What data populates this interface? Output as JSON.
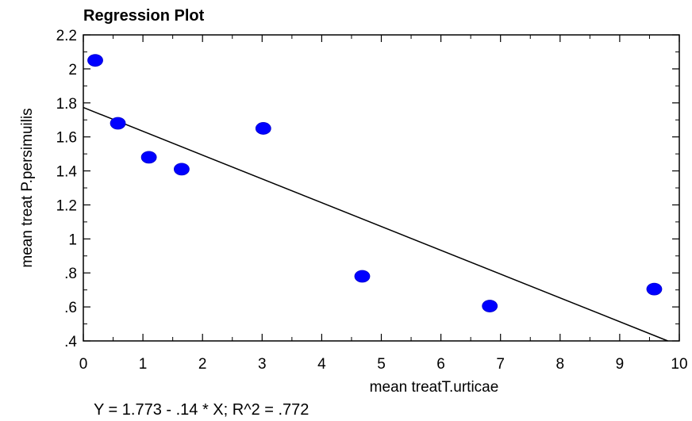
{
  "chart_data": {
    "type": "scatter",
    "title": "Regression Plot",
    "xlabel": "mean treatT.urticae",
    "ylabel": "mean treat P.persimuilis",
    "xlim": [
      0,
      10
    ],
    "ylim": [
      0.4,
      2.2
    ],
    "x_ticks": [
      0,
      1,
      2,
      3,
      4,
      5,
      6,
      7,
      8,
      9,
      10
    ],
    "x_tick_labels": [
      "0",
      "1",
      "2",
      "3",
      "4",
      "5",
      "6",
      "7",
      "8",
      "9",
      "10"
    ],
    "y_ticks": [
      0.4,
      0.6,
      0.8,
      1.0,
      1.2,
      1.4,
      1.6,
      1.8,
      2.0,
      2.2
    ],
    "y_tick_labels": [
      ".4",
      ".6",
      ".8",
      "1",
      "1.2",
      "1.4",
      "1.6",
      "1.8",
      "2",
      "2.2"
    ],
    "points": [
      {
        "x": 0.2,
        "y": 2.05
      },
      {
        "x": 0.58,
        "y": 1.68
      },
      {
        "x": 1.1,
        "y": 1.48
      },
      {
        "x": 1.65,
        "y": 1.41
      },
      {
        "x": 3.02,
        "y": 1.65
      },
      {
        "x": 4.68,
        "y": 0.78
      },
      {
        "x": 6.82,
        "y": 0.605
      },
      {
        "x": 9.58,
        "y": 0.705
      }
    ],
    "regression": {
      "intercept": 1.773,
      "slope": -0.14
    },
    "equation": "Y = 1.773 - .14 * X; R^2 = .772",
    "point_color": "#0000ff",
    "line_color": "#000000",
    "grid": false
  }
}
